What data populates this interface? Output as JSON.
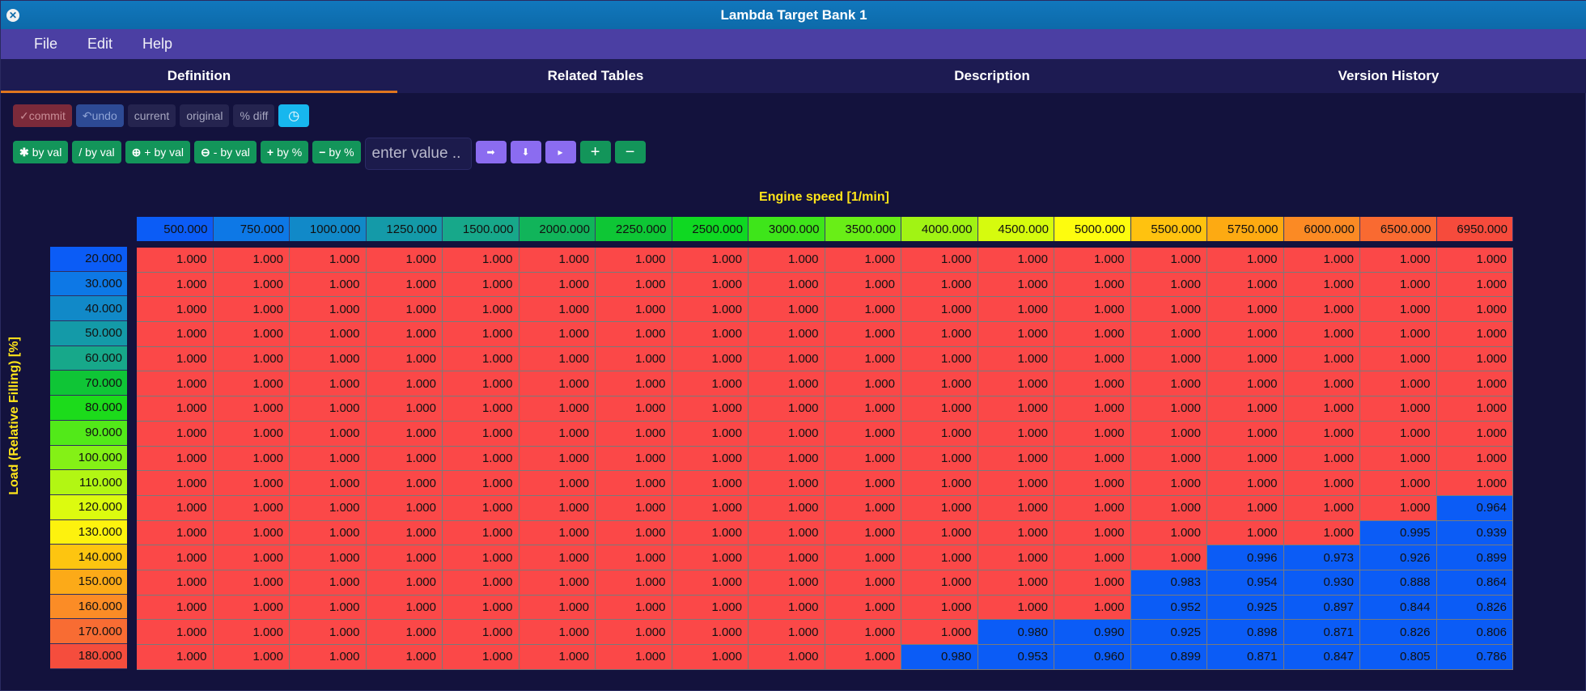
{
  "window": {
    "title": "Lambda Target Bank 1",
    "close_icon": "close-icon"
  },
  "menu": {
    "items": [
      "File",
      "Edit",
      "Help"
    ]
  },
  "tabs": [
    "Definition",
    "Related Tables",
    "Description",
    "Version History"
  ],
  "toolbar": {
    "commit": "commit",
    "undo": "undo",
    "current": "current",
    "original": "original",
    "pct_diff": "% diff"
  },
  "ops": {
    "mul": "by val",
    "div": "/ by val",
    "add": "+ by val",
    "sub": "- by val",
    "add_pct": "by %",
    "sub_pct": "by %",
    "input_placeholder": "enter value .."
  },
  "colors": {
    "high": "#fb4848",
    "low": "#0b5cf6",
    "axis_title": "#ffe51a",
    "tab_accent": "#e0761f"
  },
  "table": {
    "x_title": "Engine speed [1/min]",
    "y_title": "Load (Relative Filling) [%]",
    "x_axis": [
      "500.000",
      "750.000",
      "1000.000",
      "1250.000",
      "1500.000",
      "2000.000",
      "2250.000",
      "2500.000",
      "3000.000",
      "3500.000",
      "4000.000",
      "4500.000",
      "5000.000",
      "5500.000",
      "5750.000",
      "6000.000",
      "6500.000",
      "6950.000"
    ],
    "x_colors": [
      "#0b5cf6",
      "#0d78e6",
      "#1189c8",
      "#149aa8",
      "#17a88a",
      "#11b45a",
      "#0ec635",
      "#0fd822",
      "#3ee51a",
      "#69ee17",
      "#a1f314",
      "#d6fb0e",
      "#fdfc0e",
      "#ffc20f",
      "#fdaa12",
      "#fb8a24",
      "#f96a31",
      "#f64b3c"
    ],
    "y_axis": [
      "20.000",
      "30.000",
      "40.000",
      "50.000",
      "60.000",
      "70.000",
      "80.000",
      "90.000",
      "100.000",
      "110.000",
      "120.000",
      "130.000",
      "140.000",
      "150.000",
      "160.000",
      "170.000",
      "180.000"
    ],
    "y_colors": [
      "#0b5cf6",
      "#0d78e6",
      "#1189c8",
      "#149aa8",
      "#17a88a",
      "#0fc536",
      "#1cdb1b",
      "#52e919",
      "#84f116",
      "#b2f613",
      "#dcfb0f",
      "#fdf20e",
      "#fdc510",
      "#fcaa18",
      "#fb8c26",
      "#f86c33",
      "#f54d3d"
    ],
    "values": [
      [
        "1.000",
        "1.000",
        "1.000",
        "1.000",
        "1.000",
        "1.000",
        "1.000",
        "1.000",
        "1.000",
        "1.000",
        "1.000",
        "1.000",
        "1.000",
        "1.000",
        "1.000",
        "1.000",
        "1.000",
        "1.000"
      ],
      [
        "1.000",
        "1.000",
        "1.000",
        "1.000",
        "1.000",
        "1.000",
        "1.000",
        "1.000",
        "1.000",
        "1.000",
        "1.000",
        "1.000",
        "1.000",
        "1.000",
        "1.000",
        "1.000",
        "1.000",
        "1.000"
      ],
      [
        "1.000",
        "1.000",
        "1.000",
        "1.000",
        "1.000",
        "1.000",
        "1.000",
        "1.000",
        "1.000",
        "1.000",
        "1.000",
        "1.000",
        "1.000",
        "1.000",
        "1.000",
        "1.000",
        "1.000",
        "1.000"
      ],
      [
        "1.000",
        "1.000",
        "1.000",
        "1.000",
        "1.000",
        "1.000",
        "1.000",
        "1.000",
        "1.000",
        "1.000",
        "1.000",
        "1.000",
        "1.000",
        "1.000",
        "1.000",
        "1.000",
        "1.000",
        "1.000"
      ],
      [
        "1.000",
        "1.000",
        "1.000",
        "1.000",
        "1.000",
        "1.000",
        "1.000",
        "1.000",
        "1.000",
        "1.000",
        "1.000",
        "1.000",
        "1.000",
        "1.000",
        "1.000",
        "1.000",
        "1.000",
        "1.000"
      ],
      [
        "1.000",
        "1.000",
        "1.000",
        "1.000",
        "1.000",
        "1.000",
        "1.000",
        "1.000",
        "1.000",
        "1.000",
        "1.000",
        "1.000",
        "1.000",
        "1.000",
        "1.000",
        "1.000",
        "1.000",
        "1.000"
      ],
      [
        "1.000",
        "1.000",
        "1.000",
        "1.000",
        "1.000",
        "1.000",
        "1.000",
        "1.000",
        "1.000",
        "1.000",
        "1.000",
        "1.000",
        "1.000",
        "1.000",
        "1.000",
        "1.000",
        "1.000",
        "1.000"
      ],
      [
        "1.000",
        "1.000",
        "1.000",
        "1.000",
        "1.000",
        "1.000",
        "1.000",
        "1.000",
        "1.000",
        "1.000",
        "1.000",
        "1.000",
        "1.000",
        "1.000",
        "1.000",
        "1.000",
        "1.000",
        "1.000"
      ],
      [
        "1.000",
        "1.000",
        "1.000",
        "1.000",
        "1.000",
        "1.000",
        "1.000",
        "1.000",
        "1.000",
        "1.000",
        "1.000",
        "1.000",
        "1.000",
        "1.000",
        "1.000",
        "1.000",
        "1.000",
        "1.000"
      ],
      [
        "1.000",
        "1.000",
        "1.000",
        "1.000",
        "1.000",
        "1.000",
        "1.000",
        "1.000",
        "1.000",
        "1.000",
        "1.000",
        "1.000",
        "1.000",
        "1.000",
        "1.000",
        "1.000",
        "1.000",
        "1.000"
      ],
      [
        "1.000",
        "1.000",
        "1.000",
        "1.000",
        "1.000",
        "1.000",
        "1.000",
        "1.000",
        "1.000",
        "1.000",
        "1.000",
        "1.000",
        "1.000",
        "1.000",
        "1.000",
        "1.000",
        "1.000",
        "0.964"
      ],
      [
        "1.000",
        "1.000",
        "1.000",
        "1.000",
        "1.000",
        "1.000",
        "1.000",
        "1.000",
        "1.000",
        "1.000",
        "1.000",
        "1.000",
        "1.000",
        "1.000",
        "1.000",
        "1.000",
        "0.995",
        "0.939"
      ],
      [
        "1.000",
        "1.000",
        "1.000",
        "1.000",
        "1.000",
        "1.000",
        "1.000",
        "1.000",
        "1.000",
        "1.000",
        "1.000",
        "1.000",
        "1.000",
        "1.000",
        "0.996",
        "0.973",
        "0.926",
        "0.899"
      ],
      [
        "1.000",
        "1.000",
        "1.000",
        "1.000",
        "1.000",
        "1.000",
        "1.000",
        "1.000",
        "1.000",
        "1.000",
        "1.000",
        "1.000",
        "1.000",
        "0.983",
        "0.954",
        "0.930",
        "0.888",
        "0.864"
      ],
      [
        "1.000",
        "1.000",
        "1.000",
        "1.000",
        "1.000",
        "1.000",
        "1.000",
        "1.000",
        "1.000",
        "1.000",
        "1.000",
        "1.000",
        "1.000",
        "0.952",
        "0.925",
        "0.897",
        "0.844",
        "0.826"
      ],
      [
        "1.000",
        "1.000",
        "1.000",
        "1.000",
        "1.000",
        "1.000",
        "1.000",
        "1.000",
        "1.000",
        "1.000",
        "1.000",
        "0.980",
        "0.990",
        "0.925",
        "0.898",
        "0.871",
        "0.826",
        "0.806"
      ],
      [
        "1.000",
        "1.000",
        "1.000",
        "1.000",
        "1.000",
        "1.000",
        "1.000",
        "1.000",
        "1.000",
        "1.000",
        "0.980",
        "0.953",
        "0.960",
        "0.899",
        "0.871",
        "0.847",
        "0.805",
        "0.786"
      ]
    ]
  }
}
